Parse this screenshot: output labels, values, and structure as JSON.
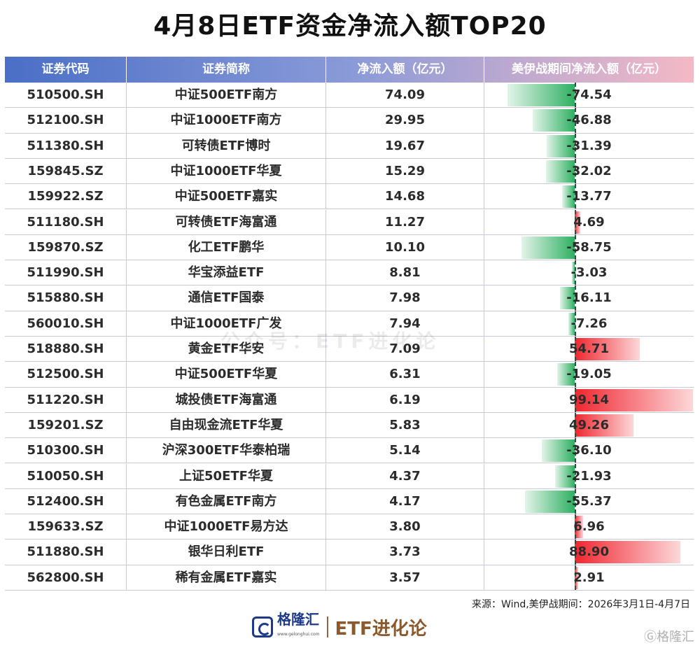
{
  "title": "4月8日ETF资金净流入额TOP20",
  "headers": [
    "证券代码",
    "证券简称",
    "净流入额（亿元）",
    "美伊战期间净流入额（亿元）"
  ],
  "watermark": "公众号：ETF进化论",
  "source": "来源：Wind,美伊战期间：2026年3月1日-4月7日",
  "logo": {
    "brand": "格隆汇",
    "site": "www.gelonghui.com",
    "product": "ETF进化论",
    "corner": "Ⓖ格隆汇"
  },
  "colors": {
    "negative_bar": "#2fb062",
    "positive_bar": "#f0262f",
    "header_start": "#4a6fc6",
    "header_end": "#f4b9c6"
  },
  "chart_data": {
    "type": "table",
    "title": "4月8日ETF资金净流入额TOP20",
    "columns": [
      "证券代码",
      "证券简称",
      "净流入额（亿元）",
      "美伊战期间净流入额（亿元）"
    ],
    "rows": [
      [
        "510500.SH",
        "中证500ETF南方",
        "74.09",
        "-74.54"
      ],
      [
        "512100.SH",
        "中证1000ETF南方",
        "29.95",
        "-46.88"
      ],
      [
        "511380.SH",
        "可转债ETF博时",
        "19.67",
        "-31.39"
      ],
      [
        "159845.SZ",
        "中证1000ETF华夏",
        "15.29",
        "-32.02"
      ],
      [
        "159922.SZ",
        "中证500ETF嘉实",
        "14.68",
        "-13.77"
      ],
      [
        "511180.SH",
        "可转债ETF海富通",
        "11.27",
        "4.69"
      ],
      [
        "159870.SZ",
        "化工ETF鹏华",
        "10.10",
        "-58.75"
      ],
      [
        "511990.SH",
        "华宝添益ETF",
        "8.81",
        "-3.03"
      ],
      [
        "515880.SH",
        "通信ETF国泰",
        "7.98",
        "-16.11"
      ],
      [
        "560010.SH",
        "中证1000ETF广发",
        "7.94",
        "-7.26"
      ],
      [
        "518880.SH",
        "黄金ETF华安",
        "7.09",
        "54.71"
      ],
      [
        "512500.SH",
        "中证500ETF华夏",
        "6.31",
        "-19.05"
      ],
      [
        "511220.SH",
        "城投债ETF海富通",
        "6.19",
        "99.14"
      ],
      [
        "159201.SZ",
        "自由现金流ETF华夏",
        "5.83",
        "49.26"
      ],
      [
        "510300.SH",
        "沪深300ETF华泰柏瑞",
        "5.14",
        "-36.10"
      ],
      [
        "510050.SH",
        "上证50ETF华夏",
        "4.37",
        "-21.93"
      ],
      [
        "512400.SH",
        "有色金属ETF南方",
        "4.17",
        "-55.37"
      ],
      [
        "159633.SZ",
        "中证1000ETF易方达",
        "3.80",
        "6.96"
      ],
      [
        "511880.SH",
        "银华日利ETF",
        "3.73",
        "88.90"
      ],
      [
        "562800.SH",
        "稀有金属ETF嘉实",
        "3.57",
        "2.91"
      ]
    ]
  }
}
